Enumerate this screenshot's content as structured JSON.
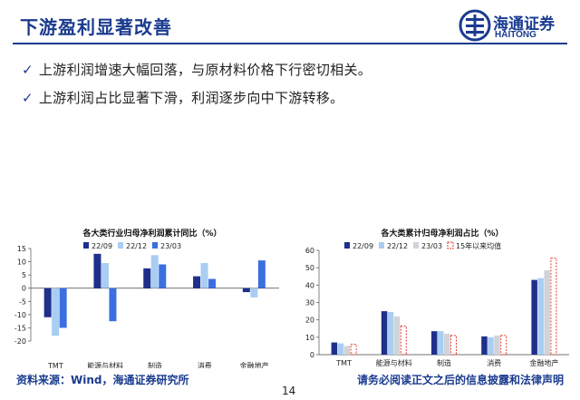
{
  "header": {
    "title": "下游盈利显著改善",
    "logo_cn": "海通证券",
    "logo_en": "HAITONG",
    "accent_color": "#1a3b8f"
  },
  "bullets": [
    {
      "icon": "checkmark-icon",
      "text": "上游利润增速大幅回落，与原材料价格下行密切相关。"
    },
    {
      "icon": "checkmark-icon",
      "text": "上游利润占比显著下滑，利润逐步向中下游转移。"
    }
  ],
  "chart_data": [
    {
      "type": "bar",
      "title": "各大类行业归母净利润累计同比（%）",
      "categories": [
        "TMT",
        "能源与材料",
        "制造",
        "消费",
        "金融地产"
      ],
      "ylim": [
        -20,
        15
      ],
      "yticks": [
        15,
        10,
        5,
        0,
        -5,
        -10,
        -15,
        -20
      ],
      "legend_position": "top",
      "series": [
        {
          "name": "22/09",
          "color": "#1f2f8c",
          "values": [
            -11,
            13,
            7.5,
            4.5,
            -1.5
          ]
        },
        {
          "name": "22/12",
          "color": "#a9cdf3",
          "values": [
            -18,
            9.5,
            12.5,
            9.5,
            -3.5
          ]
        },
        {
          "name": "23/03",
          "color": "#3b6fe0",
          "values": [
            -15,
            -12.5,
            9,
            3.5,
            10.5
          ]
        }
      ]
    },
    {
      "type": "bar",
      "title": "各大类累计归母净利润占比（%）",
      "categories": [
        "TMT",
        "能源与材料",
        "制造",
        "消费",
        "金融地产"
      ],
      "ylim": [
        0,
        60
      ],
      "yticks": [
        60,
        50,
        40,
        30,
        20,
        10,
        0
      ],
      "legend_position": "top",
      "series": [
        {
          "name": "22/09",
          "color": "#1f2f8c",
          "values": [
            7,
            25,
            13.5,
            10.5,
            43
          ]
        },
        {
          "name": "22/12",
          "color": "#a9cdf3",
          "values": [
            6.5,
            24.5,
            13.5,
            10,
            44
          ]
        },
        {
          "name": "23/03",
          "color": "#cfd3da",
          "values": [
            5,
            22,
            12,
            11,
            48.5
          ]
        },
        {
          "name": "15年以来均值",
          "color": "#e23b2e",
          "dashed": true,
          "values": [
            6,
            16.5,
            11,
            11,
            55.5
          ]
        }
      ]
    }
  ],
  "footer": {
    "source": "资料来源：Wind，海通证券研究所",
    "disclaimer": "请务必阅读正文之后的信息披露和法律声明",
    "page_number": "14"
  }
}
